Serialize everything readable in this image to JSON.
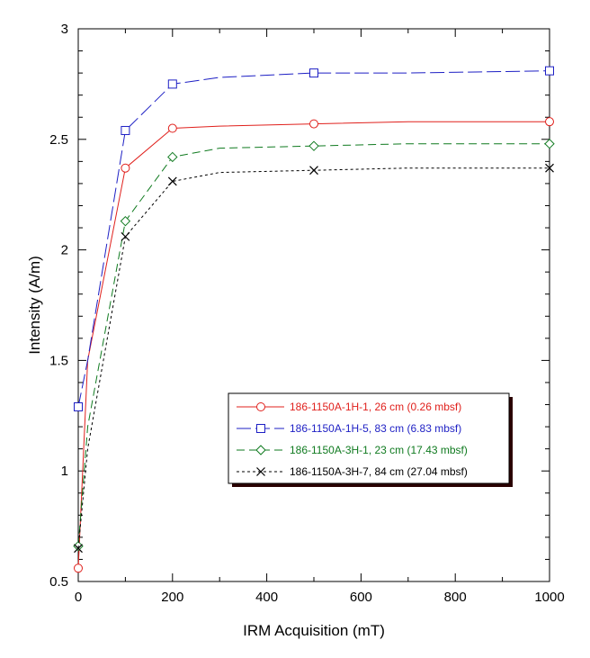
{
  "chart_data": {
    "type": "line",
    "xlabel": "IRM Acquisition (mT)",
    "ylabel": "Intensity (A/m)",
    "xlim": [
      0,
      1000
    ],
    "ylim": [
      0.5,
      3
    ],
    "xticks": [
      "0",
      "200",
      "400",
      "600",
      "800",
      "1000"
    ],
    "yticks": [
      "0.5",
      "1",
      "1.5",
      "2",
      "2.5",
      "3"
    ],
    "grid": false,
    "legend_position": "lower-right",
    "series": [
      {
        "name": "186-1150A-1H-1, 26 cm (0.26 mbsf)",
        "color": "#e0201c",
        "marker": "circle",
        "dash": "solid",
        "x": [
          0,
          100,
          200,
          500,
          1000
        ],
        "y": [
          0.56,
          2.37,
          2.55,
          2.57,
          2.58
        ],
        "curve_x": [
          0,
          20,
          100,
          200,
          300,
          500,
          700,
          1000
        ],
        "curve_y": [
          0.56,
          1.5,
          2.37,
          2.55,
          2.56,
          2.57,
          2.58,
          2.58
        ]
      },
      {
        "name": "186-1150A-1H-5, 83 cm (6.83 mbsf)",
        "color": "#1d1fc4",
        "marker": "square",
        "dash": "longdash",
        "x": [
          0,
          100,
          200,
          500,
          1000
        ],
        "y": [
          1.29,
          2.54,
          2.75,
          2.8,
          2.81
        ],
        "curve_x": [
          0,
          20,
          100,
          200,
          300,
          500,
          700,
          1000
        ],
        "curve_y": [
          1.29,
          1.5,
          2.54,
          2.75,
          2.78,
          2.8,
          2.8,
          2.81
        ]
      },
      {
        "name": "186-1150A-3H-1, 23 cm (17.43 mbsf)",
        "color": "#0f7a1f",
        "marker": "diamond",
        "dash": "dash",
        "x": [
          0,
          100,
          200,
          500,
          1000
        ],
        "y": [
          0.66,
          2.13,
          2.42,
          2.47,
          2.48
        ],
        "curve_x": [
          0,
          20,
          100,
          200,
          300,
          500,
          700,
          1000
        ],
        "curve_y": [
          0.66,
          1.2,
          2.13,
          2.42,
          2.46,
          2.47,
          2.48,
          2.48
        ]
      },
      {
        "name": "186-1150A-3H-7, 84 cm (27.04 mbsf)",
        "color": "#000000",
        "marker": "x",
        "dash": "dot",
        "x": [
          0,
          100,
          200,
          500,
          1000
        ],
        "y": [
          0.65,
          2.06,
          2.31,
          2.36,
          2.37
        ],
        "curve_x": [
          0,
          20,
          100,
          200,
          300,
          500,
          700,
          1000
        ],
        "curve_y": [
          0.65,
          1.1,
          2.06,
          2.31,
          2.35,
          2.36,
          2.37,
          2.37
        ]
      }
    ]
  }
}
